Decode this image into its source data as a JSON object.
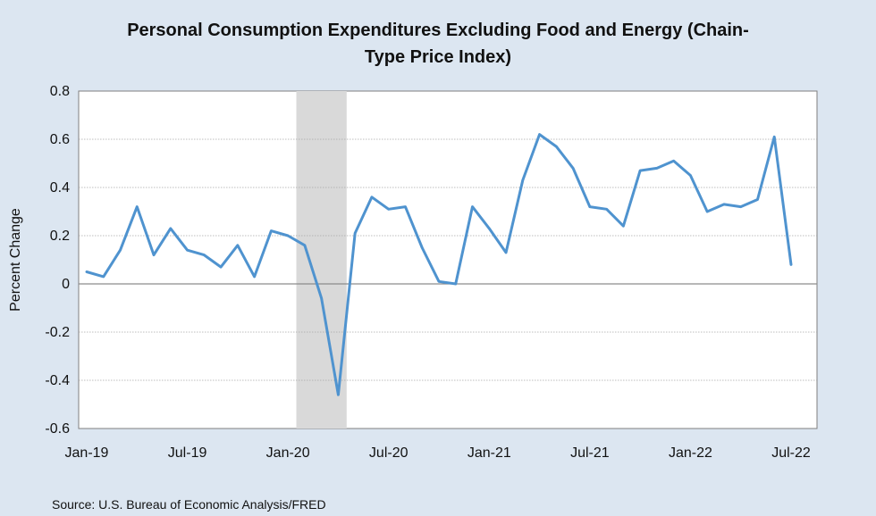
{
  "chart_data": {
    "type": "line",
    "title_lines": [
      "Personal Consumption Expenditures Excluding Food and Energy (Chain-",
      "Type Price Index)"
    ],
    "ylabel": "Percent Change",
    "xlabel": "",
    "ylim": [
      -0.6,
      0.8
    ],
    "yticks": [
      -0.6,
      -0.4,
      -0.2,
      0,
      0.2,
      0.4,
      0.6,
      0.8
    ],
    "ytick_labels": [
      "-0.6",
      "-0.4",
      "-0.2",
      "0",
      "0.2",
      "0.4",
      "0.6",
      "0.8"
    ],
    "xtick_labels": [
      "Jan-19",
      "Jul-19",
      "Jan-20",
      "Jul-20",
      "Jan-21",
      "Jul-21",
      "Jan-22",
      "Jul-22"
    ],
    "xtick_month_index": [
      0,
      6,
      12,
      18,
      24,
      30,
      36,
      42
    ],
    "grid": true,
    "recession_shading": {
      "start_index": 13,
      "end_index": 16
    },
    "series": [
      {
        "name": "PCE Excluding Food and Energy",
        "color": "#4f93cf",
        "x": [
          "Jan-19",
          "Feb-19",
          "Mar-19",
          "Apr-19",
          "May-19",
          "Jun-19",
          "Jul-19",
          "Aug-19",
          "Sep-19",
          "Oct-19",
          "Nov-19",
          "Dec-19",
          "Jan-20",
          "Feb-20",
          "Mar-20",
          "Apr-20",
          "May-20",
          "Jun-20",
          "Jul-20",
          "Aug-20",
          "Sep-20",
          "Oct-20",
          "Nov-20",
          "Dec-20",
          "Jan-21",
          "Feb-21",
          "Mar-21",
          "Apr-21",
          "May-21",
          "Jun-21",
          "Jul-21",
          "Aug-21",
          "Sep-21",
          "Oct-21",
          "Nov-21",
          "Dec-21",
          "Jan-22",
          "Feb-22",
          "Mar-22",
          "Apr-22",
          "May-22",
          "Jun-22",
          "Jul-22"
        ],
        "values": [
          0.05,
          0.03,
          0.14,
          0.32,
          0.12,
          0.23,
          0.14,
          0.12,
          0.07,
          0.16,
          0.03,
          0.22,
          0.2,
          0.16,
          -0.06,
          -0.46,
          0.21,
          0.36,
          0.31,
          0.32,
          0.15,
          0.01,
          0.0,
          0.32,
          0.23,
          0.13,
          0.43,
          0.62,
          0.57,
          0.48,
          0.32,
          0.31,
          0.24,
          0.47,
          0.48,
          0.51,
          0.45,
          0.3,
          0.33,
          0.32,
          0.35,
          0.61,
          0.08
        ]
      }
    ],
    "source": "Source: U.S. Bureau of Economic Analysis/FRED"
  }
}
